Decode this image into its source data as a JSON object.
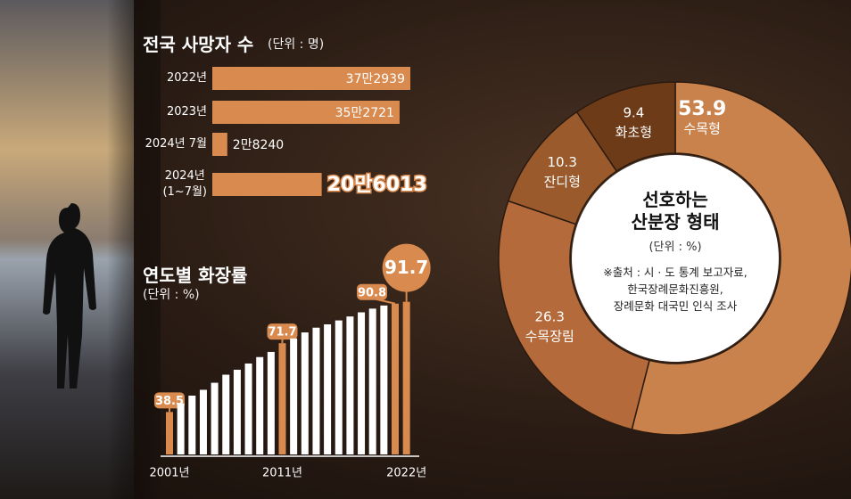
{
  "chart_data": [
    {
      "type": "hbar",
      "title": "전국 사망자 수",
      "subtitle": "(단위 : 명)",
      "categories": [
        "2022년",
        "2023년",
        "2024년 7월",
        "2024년\n(1~7월)"
      ],
      "values": [
        372939,
        352721,
        28240,
        206013
      ],
      "value_labels": [
        "37만2939",
        "35만2721",
        "2만8240",
        "20만6013"
      ],
      "color": "#d98a4e"
    },
    {
      "type": "bar",
      "title": "연도별 화장률",
      "subtitle": "(단위 : %)",
      "categories": [
        "2001년",
        null,
        null,
        null,
        null,
        null,
        null,
        null,
        null,
        null,
        "2011년",
        null,
        null,
        null,
        null,
        null,
        null,
        null,
        null,
        null,
        null,
        "2022년"
      ],
      "values": [
        38.5,
        42.6,
        46.4,
        49.2,
        52.6,
        56.5,
        58.9,
        61.9,
        65.0,
        67.5,
        71.7,
        74.0,
        76.9,
        79.2,
        80.8,
        82.7,
        84.6,
        86.6,
        88.4,
        89.9,
        90.8,
        91.7
      ],
      "colors": [
        "#d98a4e",
        "#ffffff",
        "#ffffff",
        "#ffffff",
        "#ffffff",
        "#ffffff",
        "#ffffff",
        "#ffffff",
        "#ffffff",
        "#ffffff",
        "#d98a4e",
        "#ffffff",
        "#ffffff",
        "#ffffff",
        "#ffffff",
        "#ffffff",
        "#ffffff",
        "#ffffff",
        "#ffffff",
        "#ffffff",
        "#d98a4e",
        "#d98a4e"
      ],
      "ylim": [
        18,
        95
      ]
    },
    {
      "type": "donut",
      "title": "선호하는\n산분장 형태",
      "subtitle": "(단위 : %)",
      "note": "※출처 : 시 · 도 통계 보고자료,\n한국장례문화진흥원,\n장례문화 대국민 인식 조사",
      "categories": [
        "수목형",
        "수목장림",
        "잔디형",
        "화초형"
      ],
      "values": [
        53.9,
        26.3,
        10.3,
        9.4
      ],
      "colors": [
        "#c9824c",
        "#b46a3a",
        "#9a5a2c",
        "#6e3b19"
      ]
    }
  ]
}
